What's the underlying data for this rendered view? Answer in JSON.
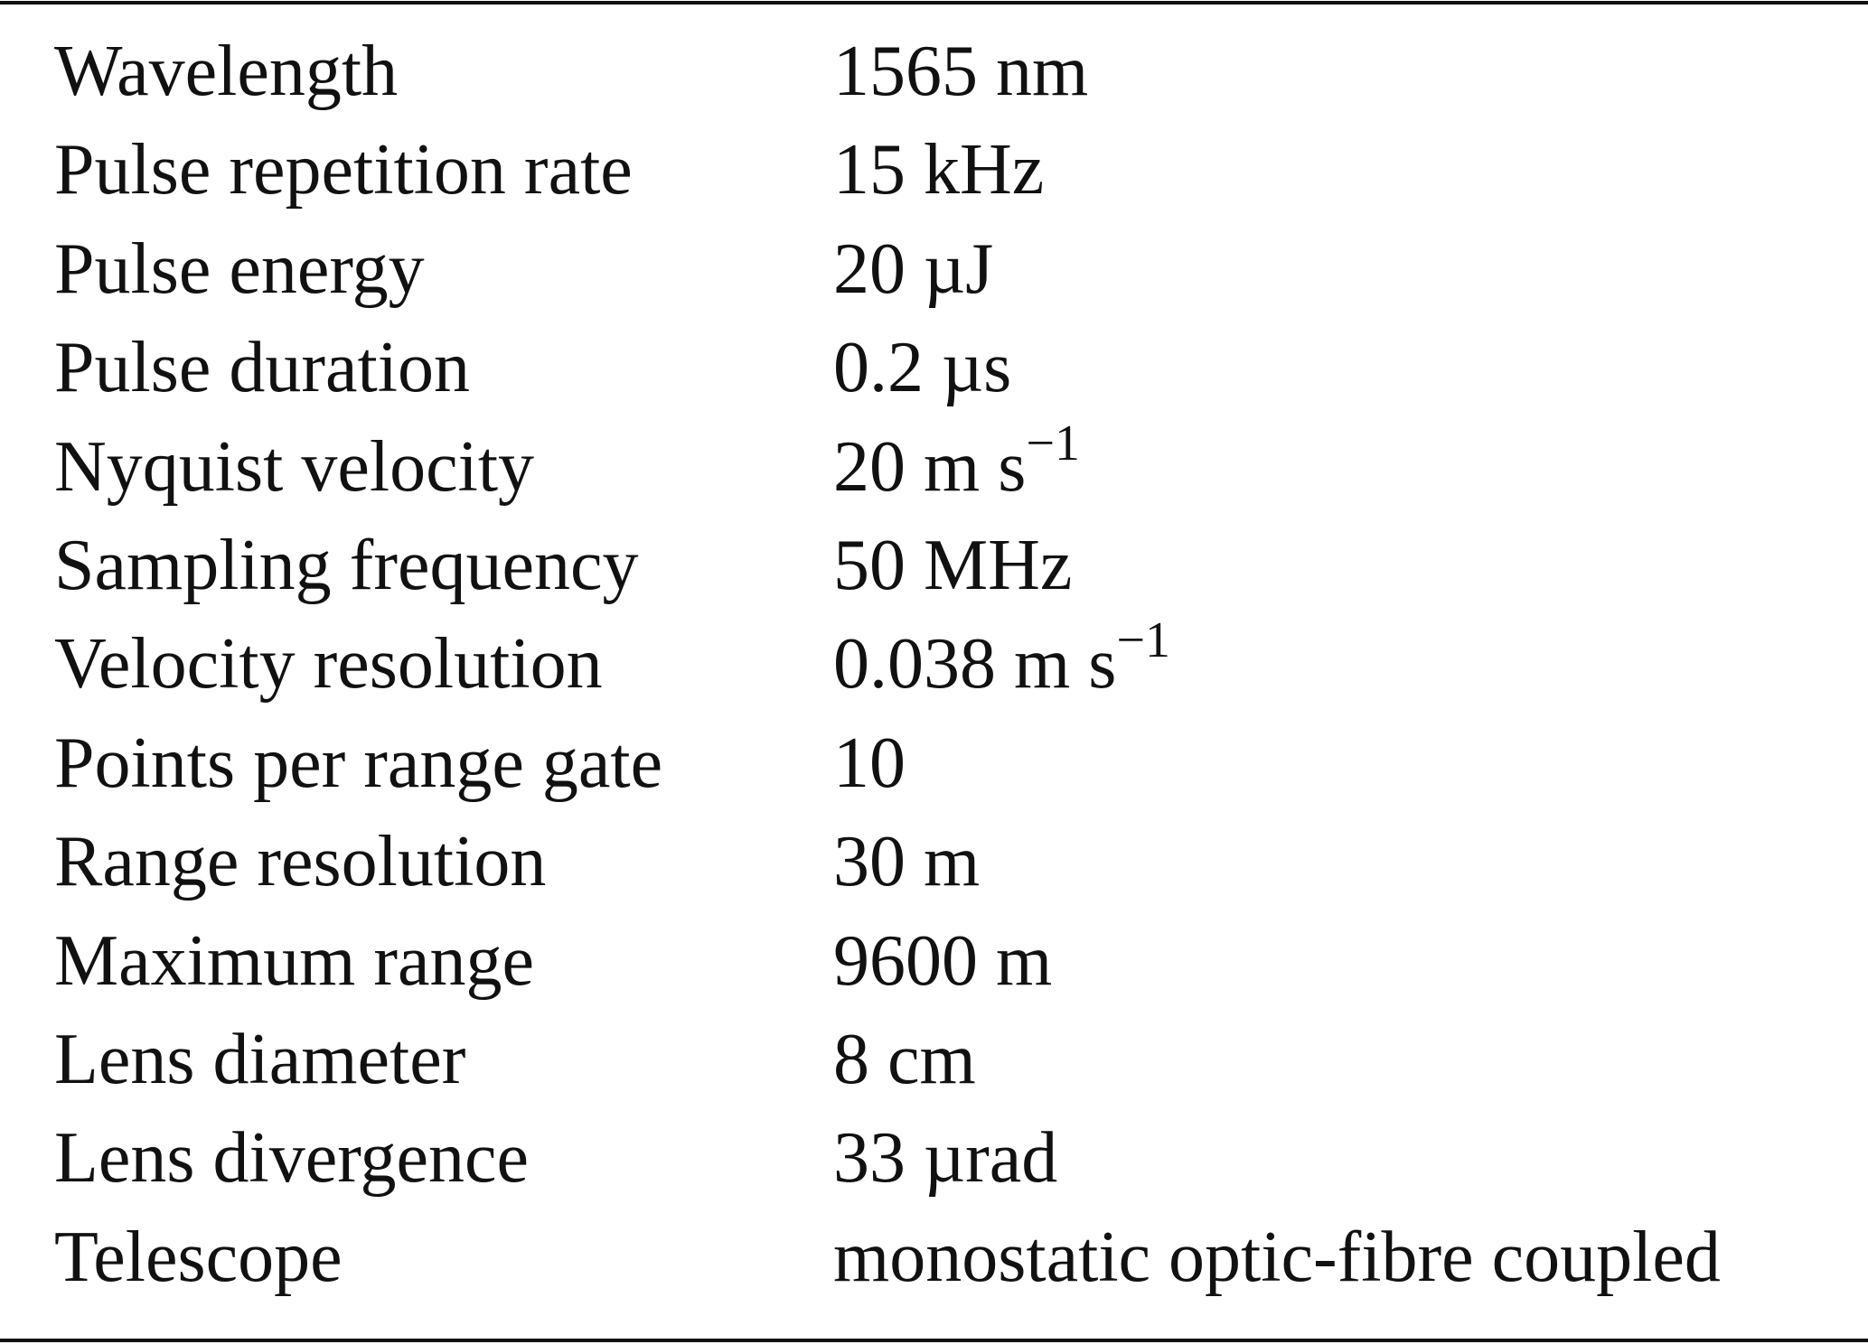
{
  "table": {
    "rows": [
      [
        "Wavelength",
        "1565 nm"
      ],
      [
        "Pulse repetition rate",
        "15 kHz"
      ],
      [
        "Pulse energy",
        "20 µJ"
      ],
      [
        "Pulse duration",
        "0.2 µs"
      ],
      [
        "Nyquist velocity",
        {
          "base": "20 m s",
          "sup": "−1"
        }
      ],
      [
        "Sampling frequency",
        "50 MHz"
      ],
      [
        "Velocity resolution",
        {
          "base": "0.038 m s",
          "sup": "−1"
        }
      ],
      [
        "Points per range gate",
        "10"
      ],
      [
        "Range resolution",
        "30 m"
      ],
      [
        "Maximum range",
        "9600 m"
      ],
      [
        "Lens diameter",
        "8 cm"
      ],
      [
        "Lens divergence",
        "33 µrad"
      ],
      [
        "Telescope",
        "monostatic optic-fibre coupled"
      ]
    ]
  }
}
